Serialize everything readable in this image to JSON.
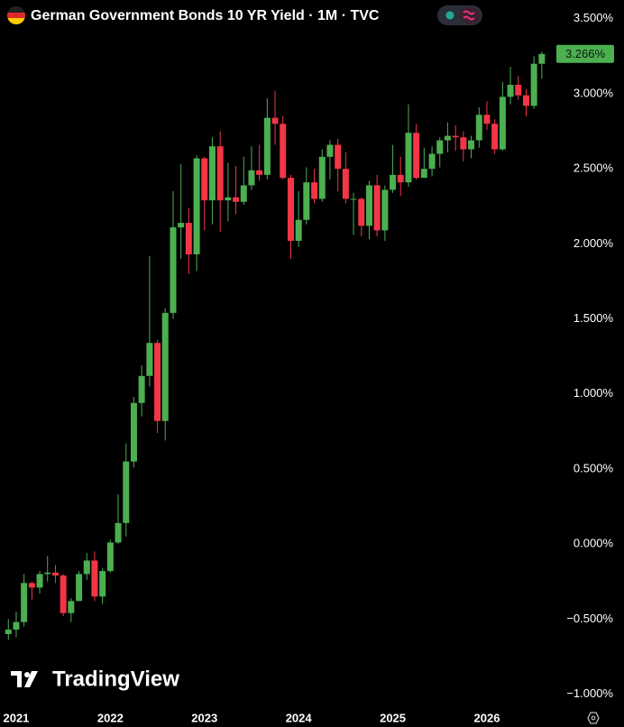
{
  "chart_data": {
    "type": "candlestick",
    "title": "German Government Bonds 10 YR Yield · 1M · TVC",
    "watermark": "TradingView",
    "up_color": "#4caf50",
    "down_color": "#f23645",
    "x": [
      2020.917,
      2021,
      2021.083,
      2021.167,
      2021.25,
      2021.333,
      2021.417,
      2021.5,
      2021.583,
      2021.667,
      2021.75,
      2021.833,
      2021.917,
      2022,
      2022.083,
      2022.167,
      2022.25,
      2022.333,
      2022.417,
      2022.5,
      2022.583,
      2022.667,
      2022.75,
      2022.833,
      2022.917,
      2023,
      2023.083,
      2023.167,
      2023.25,
      2023.333,
      2023.417,
      2023.5,
      2023.583,
      2023.667,
      2023.75,
      2023.833,
      2023.917,
      2024,
      2024.083,
      2024.167,
      2024.25,
      2024.333,
      2024.417,
      2024.5,
      2024.583,
      2024.667,
      2024.75,
      2024.833,
      2024.917,
      2025,
      2025.083,
      2025.167,
      2025.25,
      2025.333,
      2025.417,
      2025.5,
      2025.583,
      2025.667,
      2025.75,
      2025.833,
      2025.917,
      2026,
      2026.083,
      2026.167,
      2026.25,
      2026.333,
      2026.417,
      2026.5,
      2026.583
    ],
    "open": [
      -0.6,
      -0.57,
      -0.52,
      -0.26,
      -0.29,
      -0.2,
      -0.19,
      -0.21,
      -0.46,
      -0.38,
      -0.2,
      -0.11,
      -0.35,
      -0.18,
      0.01,
      0.14,
      0.55,
      0.94,
      1.12,
      1.34,
      0.82,
      1.54,
      2.11,
      2.14,
      1.93,
      2.57,
      2.29,
      2.65,
      2.29,
      2.31,
      2.28,
      2.39,
      2.49,
      2.46,
      2.84,
      2.8,
      2.44,
      2.02,
      2.16,
      2.41,
      2.3,
      2.58,
      2.66,
      2.5,
      2.3,
      2.3,
      2.12,
      2.39,
      2.09,
      2.36,
      2.46,
      2.41,
      2.74,
      2.44,
      2.5,
      2.6,
      2.69,
      2.72,
      2.71,
      2.63,
      2.69,
      2.86,
      2.8,
      2.63,
      2.98,
      3.06,
      2.99,
      2.92,
      3.2
    ],
    "high": [
      -0.5,
      -0.45,
      -0.2,
      -0.25,
      -0.18,
      -0.08,
      -0.14,
      -0.2,
      -0.36,
      -0.18,
      -0.06,
      -0.05,
      -0.16,
      0.03,
      0.33,
      0.67,
      0.98,
      1.19,
      1.92,
      1.36,
      1.57,
      2.35,
      2.53,
      2.24,
      2.59,
      2.58,
      2.71,
      2.75,
      2.54,
      2.52,
      2.58,
      2.65,
      2.66,
      2.97,
      3.02,
      2.85,
      2.46,
      2.35,
      2.51,
      2.5,
      2.63,
      2.69,
      2.7,
      2.61,
      2.34,
      2.31,
      2.42,
      2.46,
      2.39,
      2.66,
      2.58,
      2.93,
      2.8,
      2.64,
      2.65,
      2.71,
      2.81,
      2.79,
      2.75,
      2.72,
      2.91,
      2.95,
      2.83,
      3.08,
      3.18,
      3.12,
      3.03,
      3.25,
      3.28
    ],
    "low": [
      -0.64,
      -0.62,
      -0.55,
      -0.37,
      -0.33,
      -0.25,
      -0.26,
      -0.48,
      -0.52,
      -0.38,
      -0.24,
      -0.38,
      -0.4,
      -0.19,
      0.0,
      0.05,
      0.51,
      0.85,
      1.05,
      0.74,
      0.69,
      1.5,
      1.9,
      1.8,
      1.82,
      2.09,
      2.13,
      2.08,
      2.15,
      2.2,
      2.26,
      2.36,
      2.42,
      2.43,
      2.66,
      2.43,
      1.9,
      1.98,
      2.13,
      2.27,
      2.28,
      2.43,
      2.35,
      2.27,
      2.06,
      2.05,
      2.03,
      2.05,
      2.02,
      2.34,
      2.32,
      2.38,
      2.43,
      2.44,
      2.45,
      2.51,
      2.61,
      2.62,
      2.55,
      2.57,
      2.64,
      2.76,
      2.6,
      2.62,
      2.93,
      2.96,
      2.85,
      2.9,
      3.1
    ],
    "close": [
      -0.57,
      -0.52,
      -0.26,
      -0.29,
      -0.2,
      -0.19,
      -0.21,
      -0.46,
      -0.38,
      -0.2,
      -0.11,
      -0.35,
      -0.18,
      0.01,
      0.14,
      0.55,
      0.94,
      1.12,
      1.34,
      0.82,
      1.54,
      2.11,
      2.14,
      1.93,
      2.57,
      2.29,
      2.65,
      2.29,
      2.31,
      2.28,
      2.39,
      2.49,
      2.46,
      2.84,
      2.8,
      2.44,
      2.02,
      2.16,
      2.41,
      2.3,
      2.58,
      2.66,
      2.5,
      2.3,
      2.3,
      2.12,
      2.39,
      2.09,
      2.36,
      2.46,
      2.41,
      2.74,
      2.44,
      2.5,
      2.6,
      2.69,
      2.72,
      2.71,
      2.63,
      2.69,
      2.86,
      2.8,
      2.63,
      2.98,
      3.06,
      2.99,
      2.92,
      3.2,
      3.266
    ],
    "last_price": {
      "value": 3.266,
      "label": "3.266%"
    },
    "xlim": [
      2020.828,
      2026.69
    ],
    "xticks": [
      2021,
      2022,
      2023,
      2024,
      2025,
      2026
    ],
    "ylim": [
      -1.093,
      3.625
    ],
    "yticks": [
      {
        "value": 3.5,
        "label": "3.500%"
      },
      {
        "value": 3.0,
        "label": "3.000%"
      },
      {
        "value": 2.5,
        "label": "2.500%"
      },
      {
        "value": 2.0,
        "label": "2.000%"
      },
      {
        "value": 1.5,
        "label": "1.500%"
      },
      {
        "value": 1.0,
        "label": "1.000%"
      },
      {
        "value": 0.5,
        "label": "0.500%"
      },
      {
        "value": 0.0,
        "label": "0.000%"
      },
      {
        "value": -0.5,
        "label": "−0.500%"
      },
      {
        "value": -1.0,
        "label": "−1.000%"
      }
    ]
  }
}
